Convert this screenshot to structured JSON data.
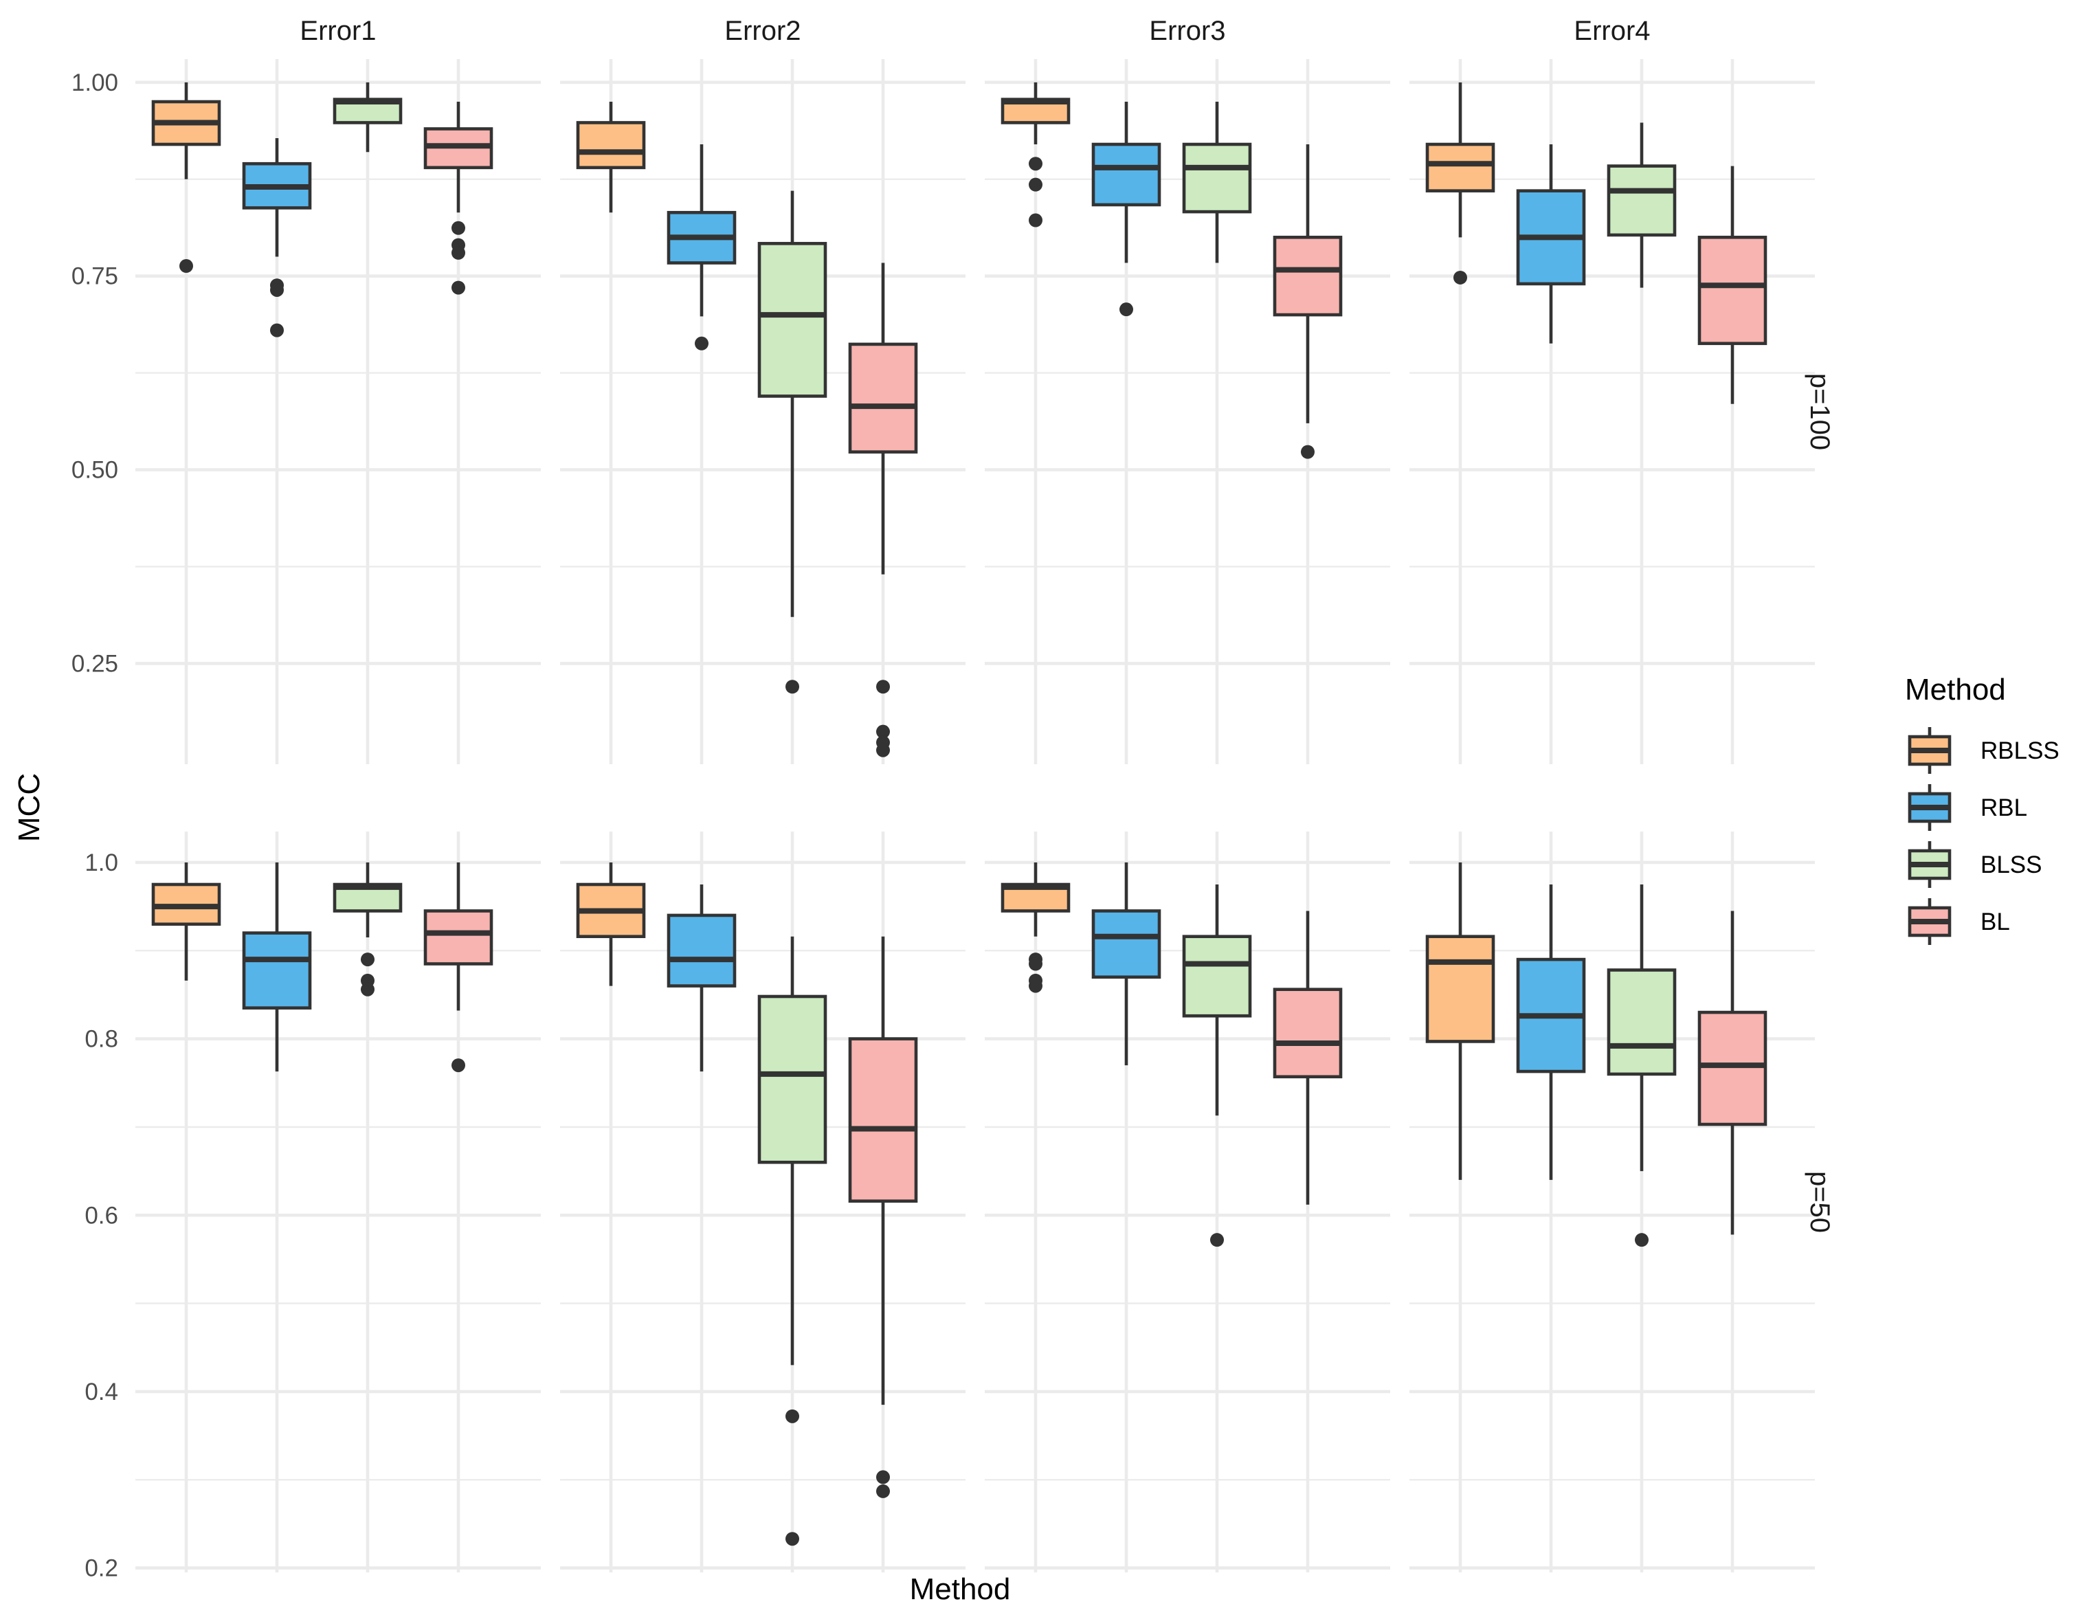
{
  "chart_data": {
    "type": "boxplot",
    "xlabel": "Method",
    "ylabel": "MCC",
    "legend": {
      "title": "Method",
      "position": "right",
      "entries": [
        {
          "name": "RBLSS",
          "color": "#FDBF85"
        },
        {
          "name": "RBL",
          "color": "#56B4E9"
        },
        {
          "name": "BLSS",
          "color": "#CDEAC0"
        },
        {
          "name": "BL",
          "color": "#F8B4B0"
        }
      ]
    },
    "columns": [
      "Error1",
      "Error2",
      "Error3",
      "Error4"
    ],
    "rows": [
      {
        "label": "p=100",
        "ylim": [
          0.12,
          1.03
        ],
        "ticks": [
          0.25,
          0.5,
          0.75,
          1.0
        ],
        "tick_labels": [
          "0.25",
          "0.50",
          "0.75",
          "1.00"
        ],
        "minor_ticks": [
          0.375,
          0.625,
          0.875
        ],
        "panels": [
          {
            "column": "Error1",
            "boxes": [
              {
                "method": "RBLSS",
                "min": 0.875,
                "q1": 0.92,
                "median": 0.948,
                "q3": 0.975,
                "max": 1.0,
                "outliers": [
                  0.763
                ]
              },
              {
                "method": "RBL",
                "min": 0.775,
                "q1": 0.838,
                "median": 0.865,
                "q3": 0.895,
                "max": 0.928,
                "outliers": [
                  0.738,
                  0.732,
                  0.68
                ]
              },
              {
                "method": "BLSS",
                "min": 0.91,
                "q1": 0.948,
                "median": 0.975,
                "q3": 0.978,
                "max": 1.0,
                "outliers": []
              },
              {
                "method": "BL",
                "min": 0.832,
                "q1": 0.89,
                "median": 0.918,
                "q3": 0.94,
                "max": 0.975,
                "outliers": [
                  0.812,
                  0.79,
                  0.78,
                  0.735
                ]
              }
            ]
          },
          {
            "column": "Error2",
            "boxes": [
              {
                "method": "RBLSS",
                "min": 0.832,
                "q1": 0.89,
                "median": 0.91,
                "q3": 0.948,
                "max": 0.975,
                "outliers": []
              },
              {
                "method": "RBL",
                "min": 0.698,
                "q1": 0.767,
                "median": 0.8,
                "q3": 0.832,
                "max": 0.92,
                "outliers": [
                  0.663
                ]
              },
              {
                "method": "BLSS",
                "min": 0.31,
                "q1": 0.595,
                "median": 0.7,
                "q3": 0.792,
                "max": 0.86,
                "outliers": [
                  0.22
                ]
              },
              {
                "method": "BL",
                "min": 0.365,
                "q1": 0.523,
                "median": 0.582,
                "q3": 0.662,
                "max": 0.767,
                "outliers": [
                  0.22,
                  0.162,
                  0.148,
                  0.138
                ]
              }
            ]
          },
          {
            "column": "Error3",
            "boxes": [
              {
                "method": "RBLSS",
                "min": 0.92,
                "q1": 0.948,
                "median": 0.975,
                "q3": 0.978,
                "max": 1.0,
                "outliers": [
                  0.895,
                  0.868,
                  0.822
                ]
              },
              {
                "method": "RBL",
                "min": 0.767,
                "q1": 0.842,
                "median": 0.89,
                "q3": 0.92,
                "max": 0.975,
                "outliers": [
                  0.707
                ]
              },
              {
                "method": "BLSS",
                "min": 0.767,
                "q1": 0.833,
                "median": 0.89,
                "q3": 0.92,
                "max": 0.975,
                "outliers": []
              },
              {
                "method": "BL",
                "min": 0.56,
                "q1": 0.7,
                "median": 0.758,
                "q3": 0.8,
                "max": 0.92,
                "outliers": [
                  0.523
                ]
              }
            ]
          },
          {
            "column": "Error4",
            "boxes": [
              {
                "method": "RBLSS",
                "min": 0.8,
                "q1": 0.86,
                "median": 0.895,
                "q3": 0.92,
                "max": 1.0,
                "outliers": [
                  0.748
                ]
              },
              {
                "method": "RBL",
                "min": 0.663,
                "q1": 0.74,
                "median": 0.8,
                "q3": 0.86,
                "max": 0.92,
                "outliers": []
              },
              {
                "method": "BLSS",
                "min": 0.735,
                "q1": 0.803,
                "median": 0.86,
                "q3": 0.892,
                "max": 0.948,
                "outliers": []
              },
              {
                "method": "BL",
                "min": 0.585,
                "q1": 0.663,
                "median": 0.738,
                "q3": 0.8,
                "max": 0.892,
                "outliers": []
              }
            ]
          }
        ]
      },
      {
        "label": "p=50",
        "ylim": [
          0.195,
          1.035
        ],
        "ticks": [
          0.2,
          0.4,
          0.6,
          0.8,
          1.0
        ],
        "tick_labels": [
          "0.2",
          "0.4",
          "0.6",
          "0.8",
          "1.0"
        ],
        "minor_ticks": [
          0.3,
          0.5,
          0.7,
          0.9
        ],
        "panels": [
          {
            "column": "Error1",
            "boxes": [
              {
                "method": "RBLSS",
                "min": 0.866,
                "q1": 0.93,
                "median": 0.95,
                "q3": 0.975,
                "max": 1.0,
                "outliers": []
              },
              {
                "method": "RBL",
                "min": 0.763,
                "q1": 0.835,
                "median": 0.89,
                "q3": 0.92,
                "max": 1.0,
                "outliers": []
              },
              {
                "method": "BLSS",
                "min": 0.915,
                "q1": 0.945,
                "median": 0.972,
                "q3": 0.975,
                "max": 1.0,
                "outliers": [
                  0.89,
                  0.866,
                  0.856
                ]
              },
              {
                "method": "BL",
                "min": 0.832,
                "q1": 0.885,
                "median": 0.92,
                "q3": 0.945,
                "max": 1.0,
                "outliers": [
                  0.77
                ]
              }
            ]
          },
          {
            "column": "Error2",
            "boxes": [
              {
                "method": "RBLSS",
                "min": 0.86,
                "q1": 0.916,
                "median": 0.945,
                "q3": 0.975,
                "max": 1.0,
                "outliers": []
              },
              {
                "method": "RBL",
                "min": 0.763,
                "q1": 0.86,
                "median": 0.89,
                "q3": 0.94,
                "max": 0.975,
                "outliers": []
              },
              {
                "method": "BLSS",
                "min": 0.43,
                "q1": 0.66,
                "median": 0.76,
                "q3": 0.848,
                "max": 0.916,
                "outliers": [
                  0.372,
                  0.233
                ]
              },
              {
                "method": "BL",
                "min": 0.385,
                "q1": 0.616,
                "median": 0.698,
                "q3": 0.8,
                "max": 0.916,
                "outliers": [
                  0.303,
                  0.287
                ]
              }
            ]
          },
          {
            "column": "Error3",
            "boxes": [
              {
                "method": "RBLSS",
                "min": 0.916,
                "q1": 0.945,
                "median": 0.972,
                "q3": 0.975,
                "max": 1.0,
                "outliers": [
                  0.89,
                  0.885,
                  0.866,
                  0.86
                ]
              },
              {
                "method": "RBL",
                "min": 0.77,
                "q1": 0.87,
                "median": 0.916,
                "q3": 0.945,
                "max": 1.0,
                "outliers": []
              },
              {
                "method": "BLSS",
                "min": 0.713,
                "q1": 0.826,
                "median": 0.885,
                "q3": 0.916,
                "max": 0.975,
                "outliers": [
                  0.572
                ]
              },
              {
                "method": "BL",
                "min": 0.612,
                "q1": 0.757,
                "median": 0.795,
                "q3": 0.856,
                "max": 0.945,
                "outliers": []
              }
            ]
          },
          {
            "column": "Error4",
            "boxes": [
              {
                "method": "RBLSS",
                "min": 0.64,
                "q1": 0.797,
                "median": 0.887,
                "q3": 0.916,
                "max": 1.0,
                "outliers": []
              },
              {
                "method": "RBL",
                "min": 0.64,
                "q1": 0.763,
                "median": 0.826,
                "q3": 0.89,
                "max": 0.975,
                "outliers": []
              },
              {
                "method": "BLSS",
                "min": 0.65,
                "q1": 0.76,
                "median": 0.792,
                "q3": 0.878,
                "max": 0.975,
                "outliers": [
                  0.572
                ]
              },
              {
                "method": "BL",
                "min": 0.578,
                "q1": 0.703,
                "median": 0.77,
                "q3": 0.83,
                "max": 0.945,
                "outliers": []
              }
            ]
          }
        ]
      }
    ]
  }
}
